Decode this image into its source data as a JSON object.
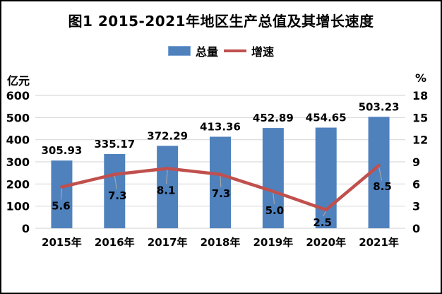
{
  "title": "图1 2015-2021年地区生产总值及其增长速度",
  "legend": {
    "bar_label": "总量",
    "line_label": "增速"
  },
  "left_axis_unit": "亿元",
  "right_axis_unit": "%",
  "chart_data": {
    "type": "combo",
    "title": "图1 2015-2021年地区生产总值及其增长速度",
    "categories": [
      "2015年",
      "2016年",
      "2017年",
      "2018年",
      "2019年",
      "2020年",
      "2021年"
    ],
    "series": [
      {
        "name": "总量",
        "type": "bar",
        "axis": "left",
        "values": [
          305.93,
          335.17,
          372.29,
          413.36,
          452.89,
          454.65,
          503.23
        ],
        "labels": [
          "305.93",
          "335.17",
          "372.29",
          "413.36",
          "452.89",
          "454.65",
          "503.23"
        ]
      },
      {
        "name": "增速",
        "type": "line",
        "axis": "right",
        "values": [
          5.6,
          7.3,
          8.1,
          7.3,
          5.0,
          2.5,
          8.5
        ],
        "labels": [
          "5.6",
          "7.3",
          "8.1",
          "7.3",
          "5.0",
          "2.5",
          "8.5"
        ]
      }
    ],
    "left_axis": {
      "unit": "亿元",
      "min": 0,
      "max": 600,
      "ticks": [
        0,
        100,
        200,
        300,
        400,
        500,
        600
      ]
    },
    "right_axis": {
      "unit": "%",
      "min": 0,
      "max": 18,
      "ticks": [
        0,
        3,
        6,
        9,
        12,
        15,
        18
      ]
    },
    "legend_position": "top",
    "grid": true,
    "colors": {
      "bar": "#4f81bd",
      "line": "#c0504d",
      "grid": "#d9d9d9",
      "leader": "#a6a6a6",
      "text": "#000000",
      "background": "#ffffff",
      "border": "#000000"
    }
  }
}
